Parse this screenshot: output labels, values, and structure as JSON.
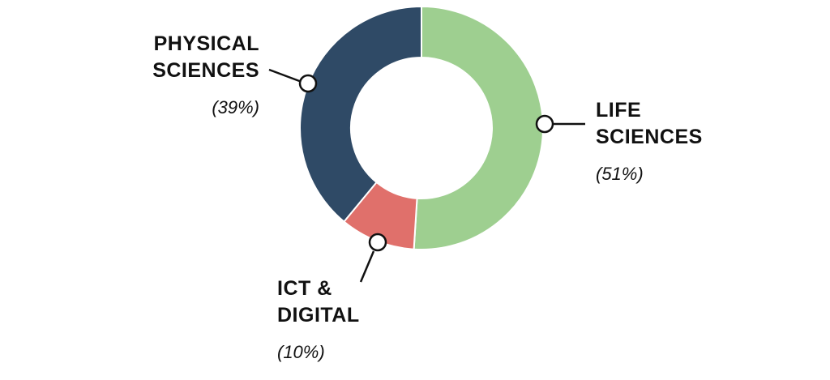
{
  "chart_data": {
    "type": "pie",
    "donut": true,
    "legend": "none",
    "slices": [
      {
        "key": "life",
        "line1": "LIFE",
        "line2": "SCIENCES",
        "value": 51,
        "pct_label": "(51%)",
        "color": "#9ecf90"
      },
      {
        "key": "ict",
        "line1": "ICT &",
        "line2": "DIGITAL",
        "value": 10,
        "pct_label": "(10%)",
        "color": "#e0706b"
      },
      {
        "key": "physical",
        "line1": "PHYSICAL",
        "line2": "SCIENCES",
        "value": 39,
        "pct_label": "(39%)",
        "color": "#2f4a66"
      }
    ]
  }
}
